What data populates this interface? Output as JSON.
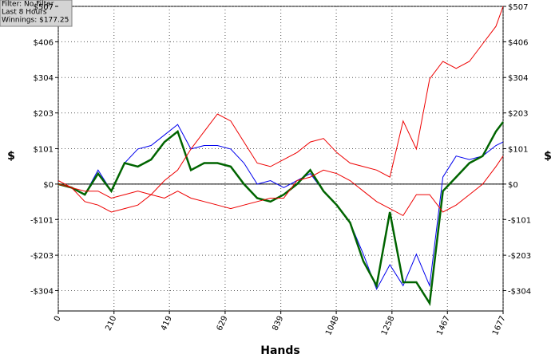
{
  "info": [
    "Filter: No Filter",
    "Last  8 Hours",
    "Winnings: $177.25"
  ],
  "chart_data": {
    "type": "line",
    "x_label": "Hands",
    "y_label": "$",
    "x": [
      0,
      50,
      100,
      150,
      200,
      250,
      300,
      350,
      400,
      450,
      500,
      550,
      600,
      650,
      700,
      750,
      800,
      850,
      900,
      950,
      1000,
      1050,
      1100,
      1150,
      1200,
      1250,
      1300,
      1350,
      1400,
      1450,
      1500,
      1550,
      1600,
      1650,
      1677
    ],
    "series": [
      {
        "color": "#0000ee",
        "width": 1,
        "values": [
          0,
          -10,
          -30,
          40,
          -20,
          60,
          100,
          110,
          140,
          170,
          100,
          110,
          110,
          100,
          60,
          0,
          10,
          -10,
          10,
          30,
          -20,
          -60,
          -110,
          -200,
          -300,
          -230,
          -290,
          -200,
          -290,
          20,
          80,
          70,
          80,
          110,
          120
        ]
      },
      {
        "color": "#006400",
        "width": 2.5,
        "values": [
          0,
          -10,
          -30,
          30,
          -20,
          60,
          50,
          70,
          120,
          150,
          40,
          60,
          60,
          50,
          0,
          -40,
          -50,
          -30,
          0,
          40,
          -20,
          -60,
          -110,
          -220,
          -290,
          -80,
          -280,
          -280,
          -340,
          -20,
          20,
          60,
          80,
          150,
          177.25
        ]
      },
      {
        "color": "#ee0000",
        "width": 1,
        "values": [
          10,
          -10,
          -50,
          -60,
          -80,
          -70,
          -60,
          -30,
          10,
          40,
          100,
          150,
          200,
          180,
          120,
          60,
          50,
          70,
          90,
          120,
          130,
          90,
          60,
          50,
          40,
          20,
          180,
          100,
          300,
          350,
          330,
          350,
          400,
          450,
          507
        ]
      },
      {
        "color": "#ee0000",
        "width": 1,
        "values": [
          0,
          -10,
          -20,
          -20,
          -40,
          -30,
          -20,
          -30,
          -40,
          -20,
          -40,
          -50,
          -60,
          -70,
          -60,
          -50,
          -40,
          -40,
          10,
          20,
          40,
          30,
          10,
          -20,
          -50,
          -70,
          -90,
          -30,
          -30,
          -80,
          -60,
          -30,
          0,
          50,
          80
        ]
      }
    ],
    "xlim": [
      0,
      1677
    ],
    "xticks": [
      0,
      210,
      419,
      629,
      839,
      1048,
      1258,
      1467,
      1677
    ],
    "ylim": [
      -362,
      507
    ],
    "yticks": [
      {
        "value": -304,
        "label": "-$304"
      },
      {
        "value": -203,
        "label": "-$203"
      },
      {
        "value": -101,
        "label": "-$101"
      },
      {
        "value": 0,
        "label": "$0"
      },
      {
        "value": 101,
        "label": "$101"
      },
      {
        "value": 203,
        "label": "$203"
      },
      {
        "value": 304,
        "label": "$304"
      },
      {
        "value": 406,
        "label": "$406"
      },
      {
        "value": 507,
        "label": "$507"
      }
    ],
    "grid": true
  }
}
